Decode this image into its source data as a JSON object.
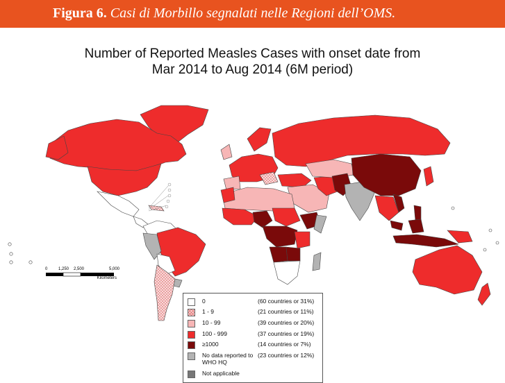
{
  "banner": {
    "figure_label": "Figura 6.",
    "caption": "Casi di Morbillo segnalati nelle Regioni dell’OMS."
  },
  "map": {
    "title_line1": "Number of Reported Measles Cases with onset date from",
    "title_line2": "Mar 2014 to Aug 2014 (6M period)",
    "scale": {
      "ticks": [
        "0",
        "1,250",
        "2,500",
        "5,000"
      ],
      "unit": "Kilometers"
    },
    "colors": {
      "zero": "#ffffff",
      "low": "#fbe3e3",
      "mid": "#f7b6b6",
      "high": "#ee2c2c",
      "very_high": "#7a0a0a",
      "no_data": "#b3b3b3",
      "not_applicable": "#777777"
    },
    "legend": [
      {
        "label": "0",
        "count": "(60 countries or 31%)",
        "color": "#ffffff"
      },
      {
        "label": "1 - 9",
        "count": "(21 countries or 11%)",
        "color": "#fbe3e3"
      },
      {
        "label": "10 - 99",
        "count": "(39 countries or 20%)",
        "color": "#f7b6b6"
      },
      {
        "label": "100 - 999",
        "count": "(37 countries or 19%)",
        "color": "#ee2c2c"
      },
      {
        "label": "≥1000",
        "count": "(14 countries or 7%)",
        "color": "#7a0a0a"
      },
      {
        "label": "No data reported to WHO HQ",
        "count": "(23 countries or 12%)",
        "color": "#b3b3b3"
      },
      {
        "label": "Not applicable",
        "count": "",
        "color": "#777777"
      }
    ]
  }
}
